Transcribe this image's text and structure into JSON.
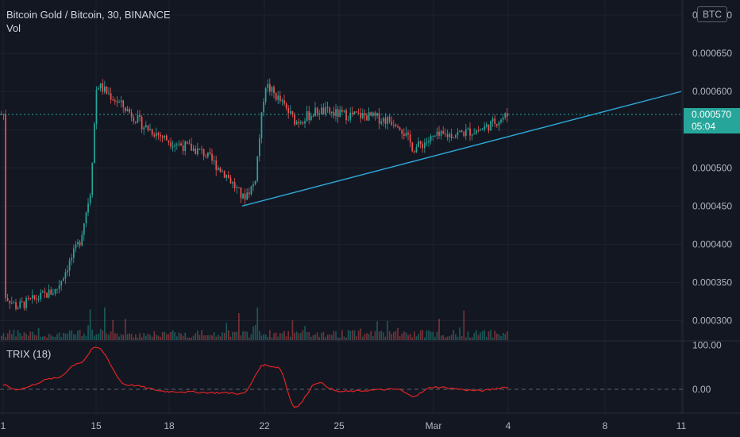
{
  "header": {
    "symbol_line": "Bitcoin Gold / Bitcoin, 30, BINANCE",
    "volume_label": "Vol",
    "currency_badge": "BTC"
  },
  "indicator": {
    "label": "TRIX (18)"
  },
  "last_price": {
    "value": "0.000570",
    "countdown": "05:04"
  },
  "colors": {
    "background": "#131722",
    "up": "#26a69a",
    "down": "#ef5350",
    "trendline": "#2ea6d6",
    "trix_line": "#e02424",
    "grid": "#1e222d"
  },
  "chart_data": [
    {
      "type": "candlestick",
      "title": "Bitcoin Gold / Bitcoin, 30, BINANCE",
      "y_axis": {
        "ticks": [
          "0.000300",
          "0.000350",
          "0.000400",
          "0.000450",
          "0.000500",
          "0.000550",
          "0.000600",
          "0.000650",
          "0.000700"
        ],
        "range": [
          0.00028,
          0.00071
        ]
      },
      "x_axis": {
        "ticks": [
          "1",
          "15",
          "18",
          "22",
          "25",
          "Mar",
          "4",
          "8",
          "11"
        ]
      },
      "price_path": [
        {
          "t": "1",
          "price": 0.000335
        },
        {
          "t": "12",
          "price": 0.000318
        },
        {
          "t": "13",
          "price": 0.00034
        },
        {
          "t": "14",
          "price": 0.000405
        },
        {
          "t": "14.6",
          "price": 0.00047
        },
        {
          "t": "15",
          "price": 0.00061
        },
        {
          "t": "16",
          "price": 0.000575
        },
        {
          "t": "17",
          "price": 0.000555
        },
        {
          "t": "18",
          "price": 0.000535
        },
        {
          "t": "19",
          "price": 0.00052
        },
        {
          "t": "20",
          "price": 0.00049
        },
        {
          "t": "21",
          "price": 0.00046
        },
        {
          "t": "21.6",
          "price": 0.00048
        },
        {
          "t": "22",
          "price": 0.00061
        },
        {
          "t": "22.6",
          "price": 0.00059
        },
        {
          "t": "23",
          "price": 0.00056
        },
        {
          "t": "24",
          "price": 0.000575
        },
        {
          "t": "25",
          "price": 0.00057
        },
        {
          "t": "26",
          "price": 0.000568
        },
        {
          "t": "27",
          "price": 0.00056
        },
        {
          "t": "28",
          "price": 0.000525
        },
        {
          "t": "Mar",
          "price": 0.00054
        },
        {
          "t": "2",
          "price": 0.000545
        },
        {
          "t": "3",
          "price": 0.00055
        },
        {
          "t": "4",
          "price": 0.00057
        }
      ],
      "trendline": [
        {
          "t": "21",
          "price": 0.00045
        },
        {
          "t": "11",
          "price": 0.0006
        }
      ],
      "last_price": 0.00057
    },
    {
      "type": "line",
      "title": "TRIX (18)",
      "y_axis": {
        "ticks": [
          "100.00",
          "0.00"
        ],
        "range": [
          -50,
          105
        ]
      },
      "zero_line": 0,
      "trix_path": [
        {
          "t": "1",
          "value": 10
        },
        {
          "t": "12",
          "value": 0
        },
        {
          "t": "13",
          "value": 25
        },
        {
          "t": "14",
          "value": 60
        },
        {
          "t": "15",
          "value": 95
        },
        {
          "t": "16",
          "value": 10
        },
        {
          "t": "18",
          "value": -5
        },
        {
          "t": "20",
          "value": -8
        },
        {
          "t": "21",
          "value": -10
        },
        {
          "t": "22",
          "value": 55
        },
        {
          "t": "22.6",
          "value": 50
        },
        {
          "t": "23",
          "value": -40
        },
        {
          "t": "24",
          "value": 15
        },
        {
          "t": "25",
          "value": -5
        },
        {
          "t": "27",
          "value": 0
        },
        {
          "t": "28",
          "value": -15
        },
        {
          "t": "Mar",
          "value": 5
        },
        {
          "t": "3",
          "value": -3
        },
        {
          "t": "4",
          "value": 5
        }
      ]
    }
  ]
}
